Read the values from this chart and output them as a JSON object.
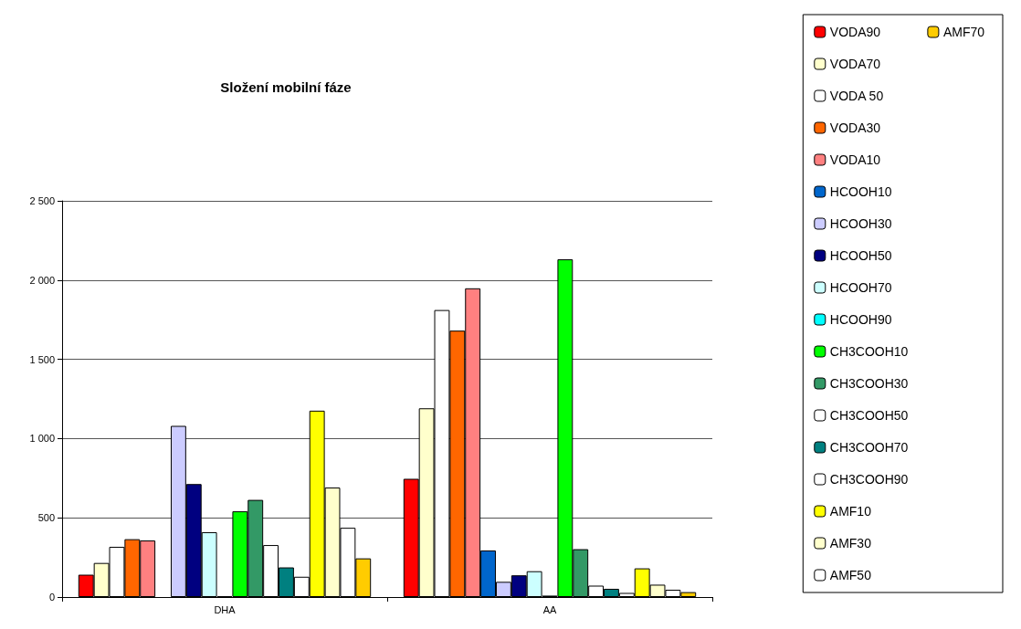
{
  "chart_data": {
    "type": "bar",
    "title": "Složení mobilní fáze",
    "categories": [
      "DHA",
      "AA"
    ],
    "series": [
      {
        "name": "VODA90",
        "color": "#ff0000",
        "values": [
          141,
          746
        ]
      },
      {
        "name": "VODA70",
        "color": "#ffffcc",
        "values": [
          215,
          1191
        ]
      },
      {
        "name": "VODA 50",
        "color": "#ffffff",
        "values": [
          317,
          1811
        ]
      },
      {
        "name": "VODA30",
        "color": "#ff6600",
        "values": [
          365,
          1681
        ]
      },
      {
        "name": "VODA10",
        "color": "#ff8080",
        "values": [
          357,
          1948
        ]
      },
      {
        "name": "HCOOH10",
        "color": "#0066cc",
        "values": [
          null,
          294
        ]
      },
      {
        "name": "HCOOH30",
        "color": "#ccccff",
        "values": [
          1080,
          96
        ]
      },
      {
        "name": "HCOOH50",
        "color": "#000080",
        "values": [
          713,
          137
        ]
      },
      {
        "name": "HCOOH70",
        "color": "#ccffff",
        "values": [
          409,
          163
        ]
      },
      {
        "name": "HCOOH90",
        "color": "#00ffff",
        "values": [
          5,
          9
        ]
      },
      {
        "name": "CH3COOH10",
        "color": "#00ff00",
        "values": [
          541,
          2131
        ]
      },
      {
        "name": "CH3COOH30",
        "color": "#339966",
        "values": [
          613,
          302
        ]
      },
      {
        "name": "CH3COOH50",
        "color": "#ffffff",
        "values": [
          328,
          72
        ]
      },
      {
        "name": "CH3COOH70",
        "color": "#008080",
        "values": [
          187,
          52
        ]
      },
      {
        "name": "CH3COOH90",
        "color": "#ffffff",
        "values": [
          128,
          26
        ]
      },
      {
        "name": "AMF10",
        "color": "#ffff00",
        "values": [
          1176,
          181
        ]
      },
      {
        "name": "AMF30",
        "color": "#ffffcc",
        "values": [
          691,
          78
        ]
      },
      {
        "name": "AMF50",
        "color": "#ffffff",
        "values": [
          437,
          46
        ]
      },
      {
        "name": "AMF70",
        "color": "#ffcc00",
        "values": [
          244,
          31
        ]
      }
    ],
    "ylim": [
      0,
      2500
    ],
    "yticks": [
      0,
      500,
      {
        "value": 1000,
        "label": "1 000"
      },
      {
        "value": 1500,
        "label": "1 500"
      },
      {
        "value": 2000,
        "label": "2 000"
      },
      {
        "value": 2500,
        "label": "2 500"
      }
    ],
    "grid": "y",
    "legend": "right"
  }
}
